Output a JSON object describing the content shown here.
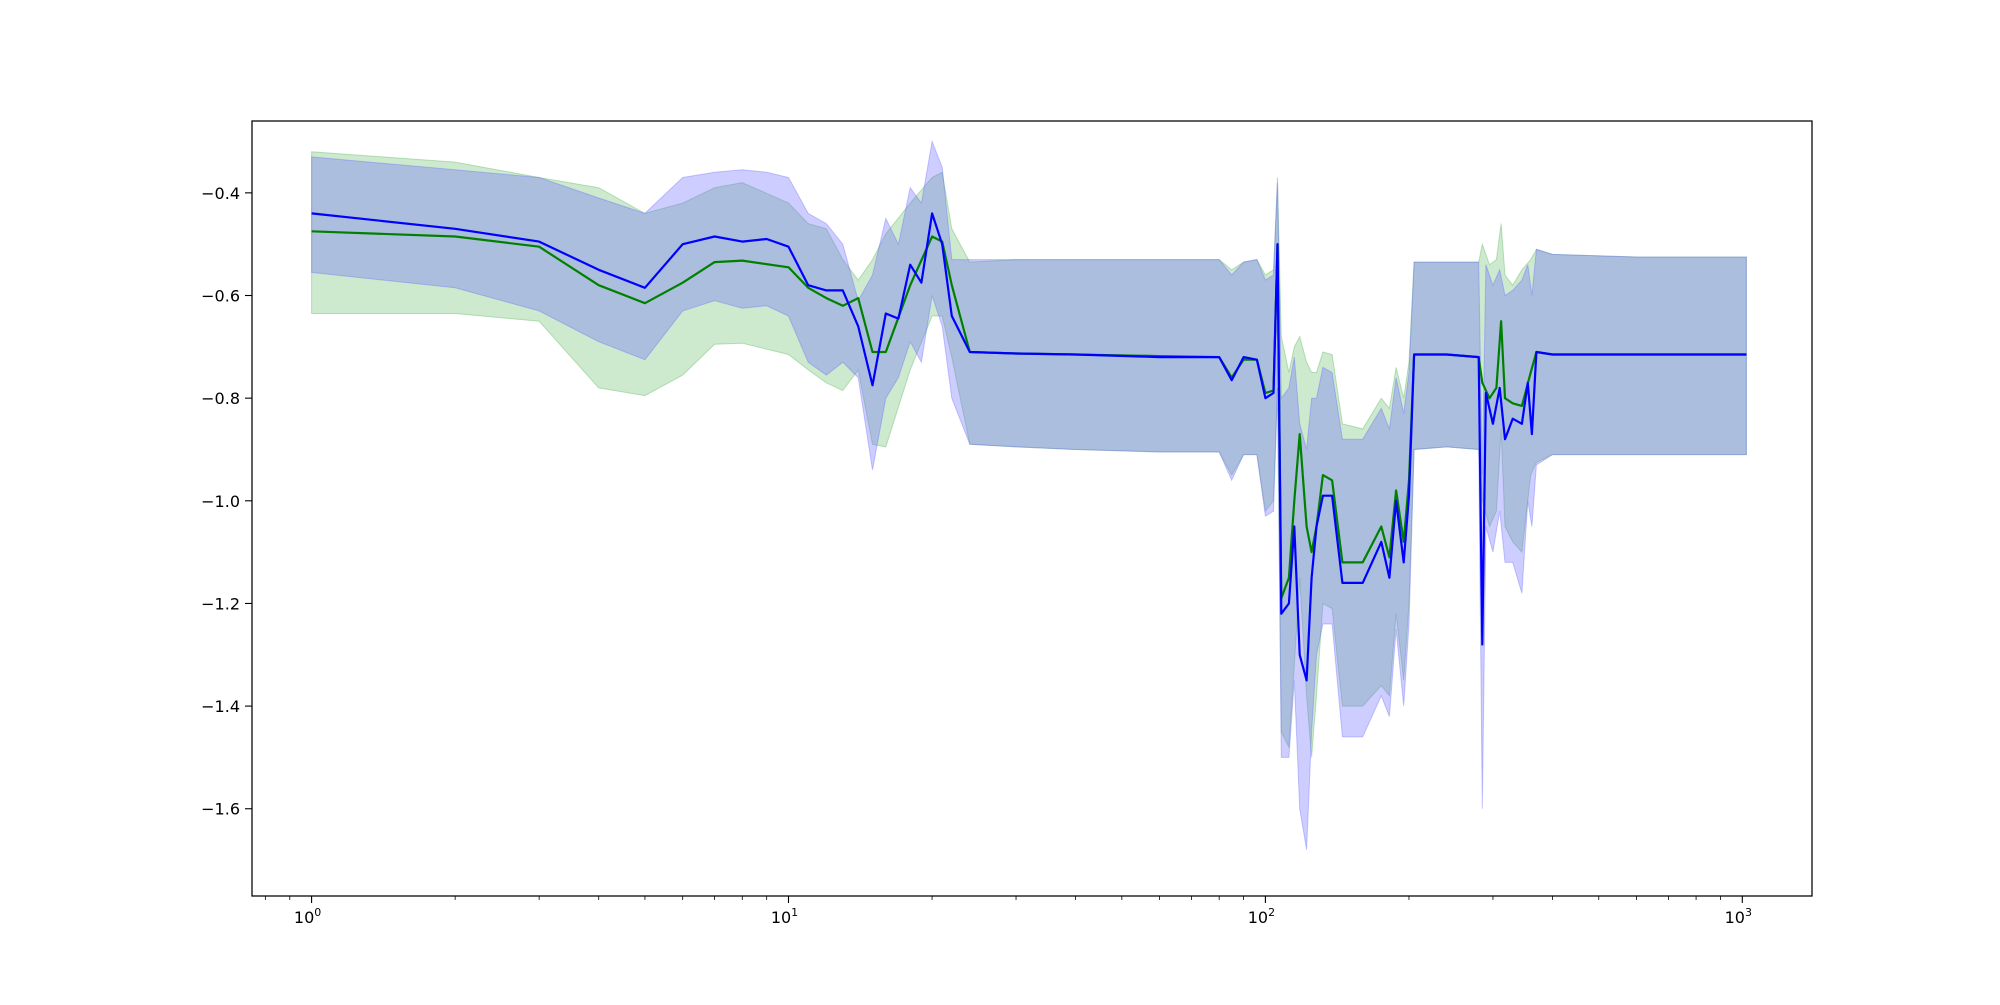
{
  "chart_data": {
    "type": "line",
    "title": "",
    "xlabel": "",
    "ylabel": "",
    "xscale": "log",
    "xlim": [
      0.75,
      1400
    ],
    "ylim": [
      -1.77,
      -0.26
    ],
    "grid": false,
    "legend": "none",
    "x_ticks": [
      {
        "value": 1,
        "base": "10",
        "exp": "0"
      },
      {
        "value": 10,
        "base": "10",
        "exp": "1"
      },
      {
        "value": 100,
        "base": "10",
        "exp": "2"
      },
      {
        "value": 1000,
        "base": "10",
        "exp": "3"
      }
    ],
    "y_ticks": [
      {
        "value": -0.4,
        "label": "−0.4"
      },
      {
        "value": -0.6,
        "label": "−0.6"
      },
      {
        "value": -0.8,
        "label": "−0.8"
      },
      {
        "value": -1.0,
        "label": "−1.0"
      },
      {
        "value": -1.2,
        "label": "−1.2"
      },
      {
        "value": -1.4,
        "label": "−1.4"
      },
      {
        "value": -1.6,
        "label": "−1.6"
      }
    ],
    "series": [
      {
        "color": "#008000",
        "band_color": "#4caf50",
        "points": [
          [
            1,
            -0.475,
            -0.32,
            -0.635
          ],
          [
            2,
            -0.485,
            -0.34,
            -0.635
          ],
          [
            3,
            -0.505,
            -0.37,
            -0.65
          ],
          [
            4,
            -0.58,
            -0.39,
            -0.78
          ],
          [
            5,
            -0.615,
            -0.44,
            -0.795
          ],
          [
            6,
            -0.575,
            -0.42,
            -0.755
          ],
          [
            7,
            -0.535,
            -0.39,
            -0.695
          ],
          [
            8,
            -0.532,
            -0.38,
            -0.693
          ],
          [
            10,
            -0.545,
            -0.42,
            -0.715
          ],
          [
            11,
            -0.585,
            -0.46,
            -0.745
          ],
          [
            12,
            -0.605,
            -0.47,
            -0.77
          ],
          [
            13,
            -0.62,
            -0.53,
            -0.785
          ],
          [
            14,
            -0.605,
            -0.57,
            -0.745
          ],
          [
            15,
            -0.71,
            -0.53,
            -0.89
          ],
          [
            16,
            -0.71,
            -0.48,
            -0.895
          ],
          [
            18,
            -0.58,
            -0.42,
            -0.745
          ],
          [
            20,
            -0.485,
            -0.37,
            -0.64
          ],
          [
            21,
            -0.495,
            -0.36,
            -0.64
          ],
          [
            22,
            -0.58,
            -0.47,
            -0.72
          ],
          [
            24,
            -0.71,
            -0.535,
            -0.89
          ],
          [
            30,
            -0.713,
            -0.53,
            -0.895
          ],
          [
            40,
            -0.715,
            -0.53,
            -0.9
          ],
          [
            60,
            -0.718,
            -0.53,
            -0.905
          ],
          [
            80,
            -0.72,
            -0.53,
            -0.905
          ],
          [
            85,
            -0.76,
            -0.55,
            -0.95
          ],
          [
            90,
            -0.725,
            -0.535,
            -0.91
          ],
          [
            96,
            -0.725,
            -0.53,
            -0.91
          ],
          [
            100,
            -0.79,
            -0.56,
            -1.02
          ],
          [
            104,
            -0.785,
            -0.55,
            -1.0
          ],
          [
            106,
            -0.5,
            -0.38,
            -0.78
          ],
          [
            108,
            -1.19,
            -0.68,
            -1.45
          ],
          [
            112,
            -1.15,
            -0.75,
            -1.48
          ],
          [
            115,
            -1.0,
            -0.7,
            -1.32
          ],
          [
            118,
            -0.87,
            -0.68,
            -1.15
          ],
          [
            122,
            -1.05,
            -0.73,
            -1.38
          ],
          [
            125,
            -1.1,
            -0.75,
            -1.5
          ],
          [
            128,
            -1.05,
            -0.75,
            -1.38
          ],
          [
            132,
            -0.95,
            -0.71,
            -1.2
          ],
          [
            138,
            -0.96,
            -0.715,
            -1.21
          ],
          [
            145,
            -1.12,
            -0.85,
            -1.4
          ],
          [
            160,
            -1.12,
            -0.86,
            -1.4
          ],
          [
            175,
            -1.05,
            -0.8,
            -1.36
          ],
          [
            182,
            -1.11,
            -0.82,
            -1.38
          ],
          [
            188,
            -0.98,
            -0.74,
            -1.22
          ],
          [
            195,
            -1.08,
            -0.8,
            -1.35
          ],
          [
            200,
            -0.96,
            -0.73,
            -1.2
          ],
          [
            205,
            -0.715,
            -0.535,
            -0.9
          ],
          [
            240,
            -0.715,
            -0.535,
            -0.895
          ],
          [
            280,
            -0.72,
            -0.535,
            -0.9
          ],
          [
            285,
            -0.77,
            -0.5,
            -1.0
          ],
          [
            295,
            -0.8,
            -0.54,
            -1.05
          ],
          [
            305,
            -0.78,
            -0.53,
            -1.02
          ],
          [
            312,
            -0.65,
            -0.46,
            -0.86
          ],
          [
            318,
            -0.8,
            -0.56,
            -1.05
          ],
          [
            330,
            -0.81,
            -0.58,
            -1.08
          ],
          [
            345,
            -0.815,
            -0.55,
            -1.1
          ],
          [
            360,
            -0.75,
            -0.53,
            -0.95
          ],
          [
            370,
            -0.71,
            -0.51,
            -0.925
          ],
          [
            400,
            -0.715,
            -0.52,
            -0.91
          ],
          [
            600,
            -0.715,
            -0.525,
            -0.91
          ],
          [
            1020,
            -0.715,
            -0.525,
            -0.91
          ]
        ]
      },
      {
        "color": "#0000ff",
        "band_color": "#6464ff",
        "points": [
          [
            1,
            -0.44,
            -0.33,
            -0.555
          ],
          [
            2,
            -0.47,
            -0.355,
            -0.585
          ],
          [
            3,
            -0.495,
            -0.37,
            -0.63
          ],
          [
            4,
            -0.55,
            -0.41,
            -0.69
          ],
          [
            5,
            -0.585,
            -0.44,
            -0.725
          ],
          [
            6,
            -0.5,
            -0.37,
            -0.63
          ],
          [
            7,
            -0.485,
            -0.36,
            -0.61
          ],
          [
            8,
            -0.495,
            -0.355,
            -0.625
          ],
          [
            9,
            -0.49,
            -0.36,
            -0.62
          ],
          [
            10,
            -0.505,
            -0.37,
            -0.64
          ],
          [
            11,
            -0.58,
            -0.44,
            -0.73
          ],
          [
            12,
            -0.59,
            -0.46,
            -0.755
          ],
          [
            13,
            -0.59,
            -0.5,
            -0.73
          ],
          [
            14,
            -0.66,
            -0.61,
            -0.76
          ],
          [
            15,
            -0.775,
            -0.56,
            -0.94
          ],
          [
            16,
            -0.635,
            -0.45,
            -0.8
          ],
          [
            17,
            -0.645,
            -0.5,
            -0.76
          ],
          [
            18,
            -0.54,
            -0.39,
            -0.69
          ],
          [
            19,
            -0.575,
            -0.42,
            -0.73
          ],
          [
            20,
            -0.44,
            -0.3,
            -0.6
          ],
          [
            21,
            -0.5,
            -0.35,
            -0.66
          ],
          [
            22,
            -0.64,
            -0.53,
            -0.8
          ],
          [
            24,
            -0.71,
            -0.53,
            -0.89
          ],
          [
            30,
            -0.713,
            -0.53,
            -0.895
          ],
          [
            40,
            -0.715,
            -0.53,
            -0.9
          ],
          [
            60,
            -0.72,
            -0.53,
            -0.905
          ],
          [
            80,
            -0.72,
            -0.53,
            -0.905
          ],
          [
            85,
            -0.765,
            -0.56,
            -0.96
          ],
          [
            90,
            -0.72,
            -0.535,
            -0.91
          ],
          [
            96,
            -0.725,
            -0.53,
            -0.91
          ],
          [
            100,
            -0.8,
            -0.57,
            -1.03
          ],
          [
            104,
            -0.79,
            -0.56,
            -1.02
          ],
          [
            106,
            -0.5,
            -0.37,
            -0.78
          ],
          [
            108,
            -1.22,
            -0.8,
            -1.5
          ],
          [
            112,
            -1.2,
            -0.78,
            -1.5
          ],
          [
            115,
            -1.05,
            -0.72,
            -1.35
          ],
          [
            118,
            -1.3,
            -0.85,
            -1.6
          ],
          [
            122,
            -1.35,
            -0.9,
            -1.68
          ],
          [
            125,
            -1.15,
            -0.8,
            -1.45
          ],
          [
            128,
            -1.05,
            -0.8,
            -1.3
          ],
          [
            132,
            -0.99,
            -0.74,
            -1.24
          ],
          [
            138,
            -0.99,
            -0.75,
            -1.24
          ],
          [
            145,
            -1.16,
            -0.88,
            -1.46
          ],
          [
            160,
            -1.16,
            -0.88,
            -1.46
          ],
          [
            175,
            -1.08,
            -0.82,
            -1.38
          ],
          [
            182,
            -1.15,
            -0.86,
            -1.42
          ],
          [
            188,
            -1.0,
            -0.76,
            -1.25
          ],
          [
            195,
            -1.12,
            -0.83,
            -1.4
          ],
          [
            200,
            -0.99,
            -0.75,
            -1.24
          ],
          [
            205,
            -0.715,
            -0.535,
            -0.9
          ],
          [
            240,
            -0.715,
            -0.535,
            -0.895
          ],
          [
            280,
            -0.72,
            -0.535,
            -0.9
          ],
          [
            285,
            -1.28,
            -0.95,
            -1.6
          ],
          [
            290,
            -0.79,
            -0.54,
            -1.05
          ],
          [
            300,
            -0.85,
            -0.58,
            -1.1
          ],
          [
            310,
            -0.78,
            -0.55,
            -1.02
          ],
          [
            318,
            -0.88,
            -0.6,
            -1.12
          ],
          [
            330,
            -0.84,
            -0.59,
            -1.12
          ],
          [
            345,
            -0.85,
            -0.57,
            -1.18
          ],
          [
            355,
            -0.77,
            -0.54,
            -1.0
          ],
          [
            362,
            -0.87,
            -0.6,
            -1.05
          ],
          [
            370,
            -0.71,
            -0.51,
            -0.93
          ],
          [
            400,
            -0.715,
            -0.52,
            -0.91
          ],
          [
            600,
            -0.715,
            -0.525,
            -0.91
          ],
          [
            1020,
            -0.715,
            -0.525,
            -0.91
          ]
        ]
      }
    ]
  }
}
